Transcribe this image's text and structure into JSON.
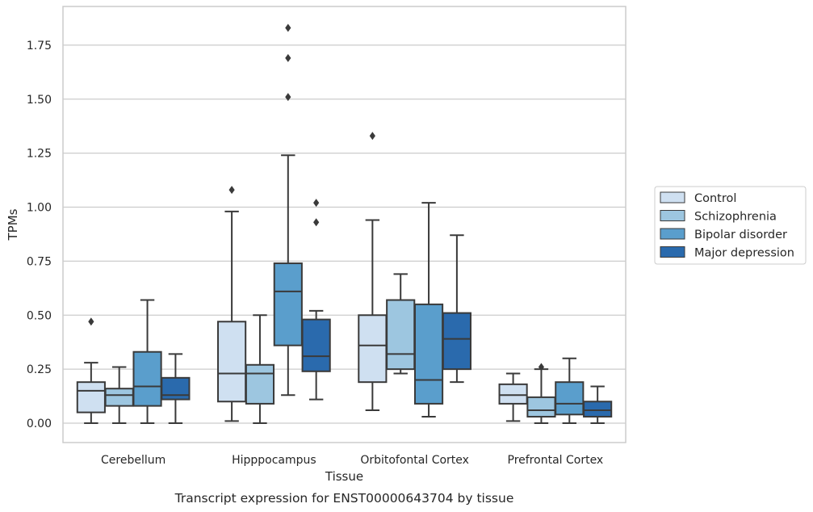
{
  "chart_data": {
    "type": "boxplot",
    "title": "",
    "caption": "Transcript expression for ENST00000643704 by tissue",
    "xlabel": "Tissue",
    "ylabel": "TPMs",
    "ylim": [
      -0.09,
      1.92
    ],
    "yticks": [
      "0.00",
      "0.25",
      "0.50",
      "0.75",
      "1.00",
      "1.25",
      "1.50",
      "1.75"
    ],
    "categories": [
      "Cerebellum",
      "Hipppocampus",
      "Orbitofontal Cortex",
      "Prefrontal Cortex"
    ],
    "grid": "horizontal",
    "legend_position": "right",
    "series": [
      {
        "name": "Control",
        "color": "#cfe0f1",
        "boxes": [
          {
            "min": 0.0,
            "q1": 0.05,
            "median": 0.15,
            "q3": 0.19,
            "max": 0.28,
            "outliers": [
              0.47
            ]
          },
          {
            "min": 0.01,
            "q1": 0.1,
            "median": 0.23,
            "q3": 0.47,
            "max": 0.98,
            "outliers": [
              1.08
            ]
          },
          {
            "min": 0.06,
            "q1": 0.19,
            "median": 0.36,
            "q3": 0.5,
            "max": 0.94,
            "outliers": [
              1.33
            ]
          },
          {
            "min": 0.01,
            "q1": 0.09,
            "median": 0.13,
            "q3": 0.18,
            "max": 0.23,
            "outliers": []
          }
        ]
      },
      {
        "name": "Schizophrenia",
        "color": "#9dc6e0",
        "boxes": [
          {
            "min": 0.0,
            "q1": 0.08,
            "median": 0.13,
            "q3": 0.16,
            "max": 0.26,
            "outliers": []
          },
          {
            "min": 0.0,
            "q1": 0.09,
            "median": 0.23,
            "q3": 0.27,
            "max": 0.5,
            "outliers": []
          },
          {
            "min": 0.23,
            "q1": 0.25,
            "median": 0.32,
            "q3": 0.57,
            "max": 0.69,
            "outliers": []
          },
          {
            "min": 0.0,
            "q1": 0.03,
            "median": 0.06,
            "q3": 0.12,
            "max": 0.25,
            "outliers": [
              0.26
            ]
          }
        ]
      },
      {
        "name": "Bipolar disorder",
        "color": "#5a9ecc",
        "boxes": [
          {
            "min": 0.0,
            "q1": 0.08,
            "median": 0.17,
            "q3": 0.33,
            "max": 0.57,
            "outliers": []
          },
          {
            "min": 0.13,
            "q1": 0.36,
            "median": 0.61,
            "q3": 0.74,
            "max": 1.24,
            "outliers": [
              1.51,
              1.69,
              1.83
            ]
          },
          {
            "min": 0.03,
            "q1": 0.09,
            "median": 0.2,
            "q3": 0.55,
            "max": 1.02,
            "outliers": []
          },
          {
            "min": 0.0,
            "q1": 0.04,
            "median": 0.09,
            "q3": 0.19,
            "max": 0.3,
            "outliers": []
          }
        ]
      },
      {
        "name": "Major depression",
        "color": "#2a6aad",
        "boxes": [
          {
            "min": 0.0,
            "q1": 0.11,
            "median": 0.13,
            "q3": 0.21,
            "max": 0.32,
            "outliers": []
          },
          {
            "min": 0.11,
            "q1": 0.24,
            "median": 0.31,
            "q3": 0.48,
            "max": 0.52,
            "outliers": [
              0.93,
              1.02
            ]
          },
          {
            "min": 0.19,
            "q1": 0.25,
            "median": 0.39,
            "q3": 0.51,
            "max": 0.87,
            "outliers": []
          },
          {
            "min": 0.0,
            "q1": 0.03,
            "median": 0.06,
            "q3": 0.1,
            "max": 0.17,
            "outliers": []
          }
        ]
      }
    ]
  }
}
